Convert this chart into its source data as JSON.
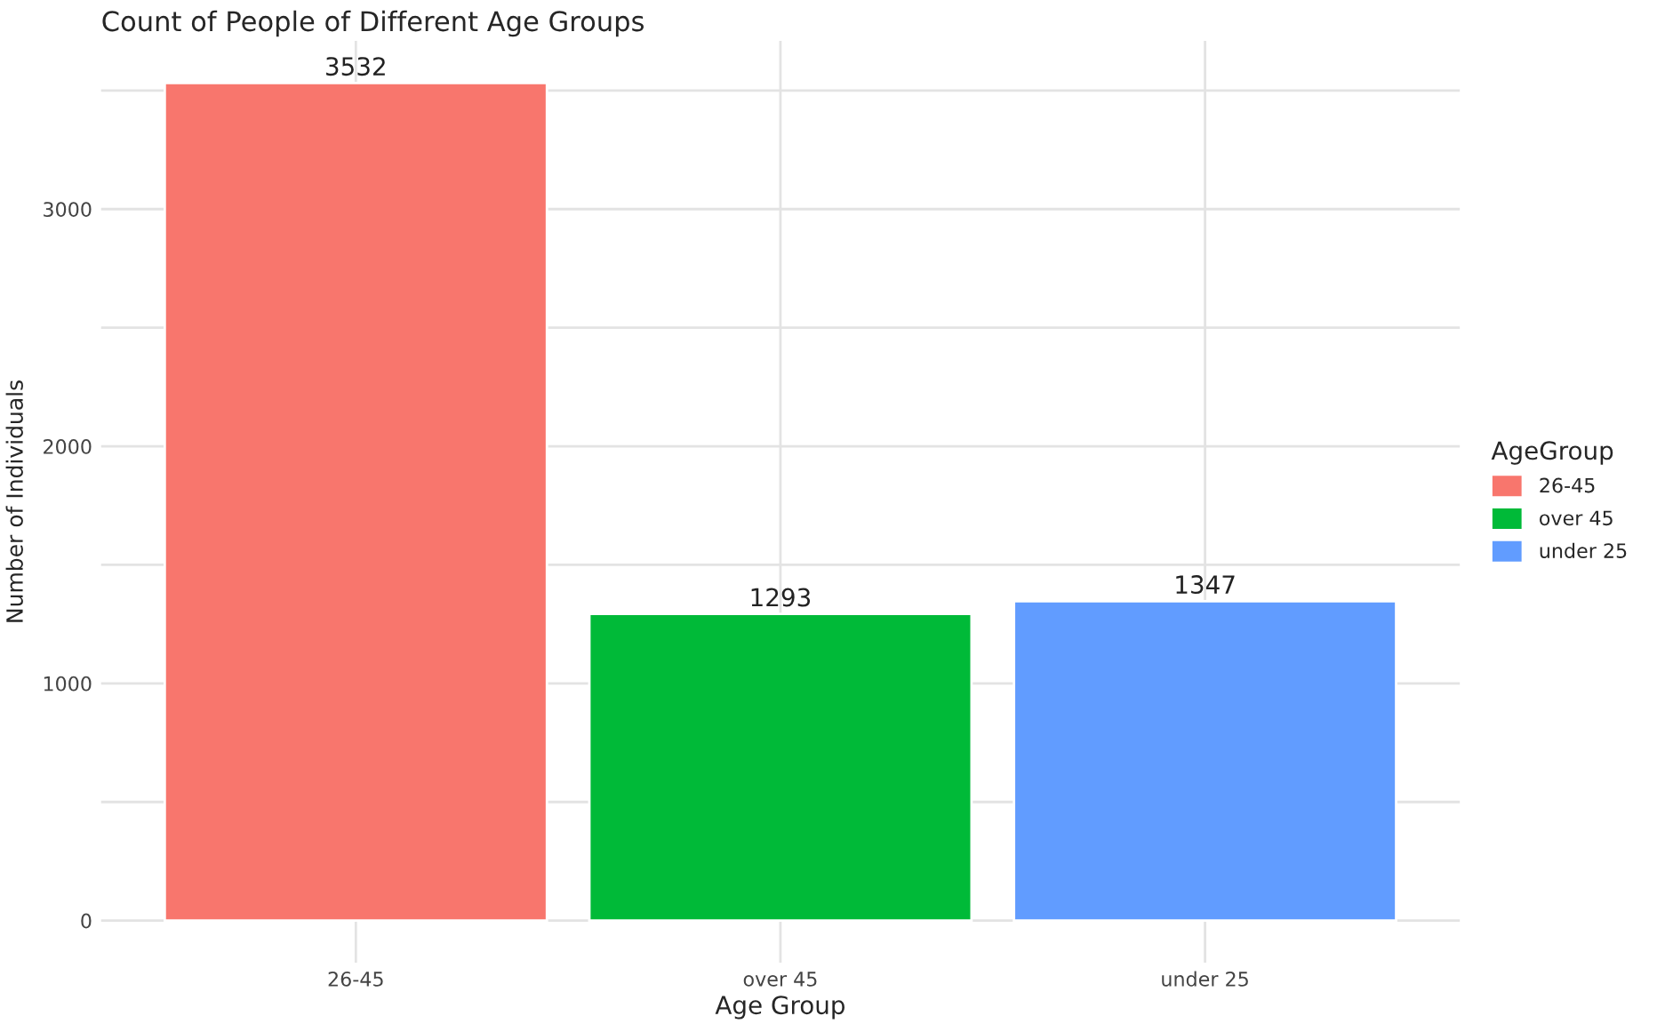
{
  "chart_data": {
    "type": "bar",
    "title": "Count of People of Different Age Groups",
    "xlabel": "Age Group",
    "ylabel": "Number of Individuals",
    "legend_title": "AgeGroup",
    "categories": [
      "26-45",
      "over 45",
      "under 25"
    ],
    "series": [
      {
        "name": "26-45",
        "color": "#f8766d",
        "values": [
          3532,
          null,
          null
        ]
      },
      {
        "name": "over 45",
        "color": "#00ba38",
        "values": [
          null,
          1293,
          null
        ]
      },
      {
        "name": "under 25",
        "color": "#619cff",
        "values": [
          null,
          null,
          1347
        ]
      }
    ],
    "data_labels": true,
    "ylim": [
      -177,
      3709
    ],
    "yticks": [
      0,
      {
        "value": 500,
        "label": null
      },
      1000,
      {
        "value": 1500,
        "label": null
      },
      2000,
      {
        "value": 2500,
        "label": null
      },
      3000,
      {
        "value": 3500,
        "label": null
      }
    ],
    "grid": true,
    "legend": "right"
  }
}
